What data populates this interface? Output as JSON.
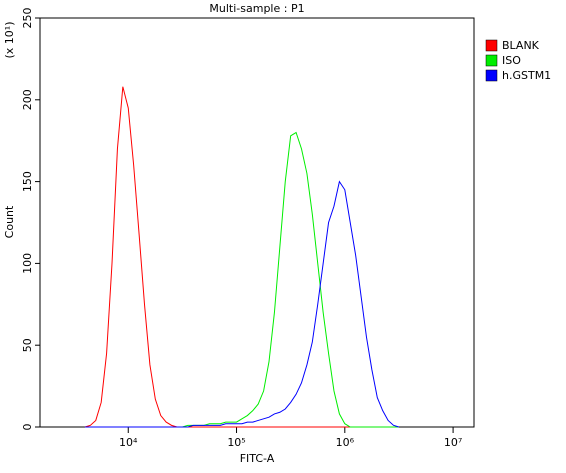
{
  "chart_data": {
    "type": "line",
    "title": "Multi-sample : P1",
    "xlabel": "FITC-A",
    "ylabel": "Count",
    "ylabel_unit": "(x 10¹)",
    "x": [
      3981,
      4467,
      5012,
      5623,
      6310,
      7079,
      7943,
      8913,
      10000,
      11220,
      12589,
      14125,
      15849,
      17783,
      19953,
      22387,
      25119,
      28184,
      31623,
      35481,
      39811,
      44668,
      50119,
      56234,
      63096,
      70795,
      79433,
      89125,
      100000,
      112202,
      125893,
      141254,
      158489,
      177828,
      199526,
      223872,
      251189,
      281838,
      316228,
      354813,
      398107,
      446684,
      501187,
      562341,
      630957,
      707946,
      794328,
      891251,
      1000000,
      1122018,
      1258925,
      1412538,
      1584893,
      1778279,
      1995262,
      2238721,
      2511886,
      2818383,
      3162278
    ],
    "series": [
      {
        "name": "BLANK",
        "color": "#ff0000",
        "values": [
          0,
          1,
          4,
          15,
          45,
          100,
          170,
          208,
          195,
          160,
          118,
          75,
          38,
          17,
          7,
          3,
          1,
          0,
          0,
          0,
          0,
          0,
          0,
          0,
          0,
          0,
          0,
          0,
          0,
          0,
          0,
          0,
          0,
          0,
          0,
          0,
          0,
          0,
          0,
          0,
          0,
          0,
          0,
          0,
          0,
          0,
          0,
          0,
          0,
          0,
          0,
          0,
          0,
          0,
          0,
          0,
          0,
          0,
          0
        ]
      },
      {
        "name": "ISO",
        "color": "#00ee00",
        "values": [
          0,
          0,
          0,
          0,
          0,
          0,
          0,
          0,
          0,
          0,
          0,
          0,
          0,
          0,
          0,
          0,
          0,
          0,
          0,
          1,
          1,
          1,
          1,
          2,
          2,
          2,
          3,
          3,
          3,
          5,
          7,
          10,
          14,
          22,
          40,
          70,
          110,
          150,
          178,
          180,
          170,
          155,
          130,
          100,
          70,
          45,
          22,
          8,
          2,
          0,
          0,
          0,
          0,
          0,
          0,
          0,
          0,
          0,
          0
        ]
      },
      {
        "name": "h.GSTM1",
        "color": "#0000ff",
        "values": [
          0,
          0,
          0,
          0,
          0,
          0,
          0,
          0,
          0,
          0,
          0,
          0,
          0,
          0,
          0,
          0,
          0,
          0,
          0,
          0,
          1,
          1,
          1,
          1,
          1,
          1,
          2,
          2,
          2,
          2,
          3,
          3,
          4,
          5,
          6,
          8,
          9,
          11,
          15,
          20,
          27,
          38,
          52,
          75,
          100,
          125,
          135,
          150,
          145,
          125,
          105,
          80,
          55,
          35,
          18,
          10,
          4,
          1,
          0
        ]
      }
    ],
    "xlog": true,
    "xlim": [
      1531,
      15600000
    ],
    "xticks": [
      {
        "value": 10000,
        "label": "10⁴"
      },
      {
        "value": 100000,
        "label": "10⁵"
      },
      {
        "value": 1000000,
        "label": "10⁶"
      },
      {
        "value": 10000000,
        "label": "10⁷"
      }
    ],
    "ylim": [
      0,
      250
    ],
    "yticks": [
      0,
      50,
      100,
      150,
      200,
      250
    ],
    "legend": "right"
  }
}
